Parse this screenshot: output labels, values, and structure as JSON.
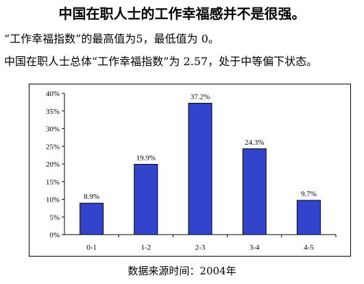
{
  "title": "中国在职人士的工作幸福感并不是很强。",
  "notes": [
    "“工作幸福指数”的最高值为5，最低值为 0。",
    "中国在职人士总体“工作幸福指数”为 2.57，处于中等偏下状态。"
  ],
  "source": "数据来源时间：2004年",
  "colors": {
    "bar_fill": "#3344cc",
    "bar_stroke": "#000000"
  },
  "chart_data": {
    "type": "bar",
    "categories": [
      "0-1",
      "1-2",
      "2-3",
      "3-4",
      "4-5"
    ],
    "values": [
      8.9,
      19.9,
      37.2,
      24.3,
      9.7
    ],
    "value_labels": [
      "8.9%",
      "19.9%",
      "37.2%",
      "24.3%",
      "9.7%"
    ],
    "yticks": [
      "0%",
      "5%",
      "10%",
      "15%",
      "20%",
      "25%",
      "30%",
      "35%",
      "40%"
    ],
    "ylim": [
      0,
      40
    ],
    "grid": false,
    "legend": "none"
  }
}
